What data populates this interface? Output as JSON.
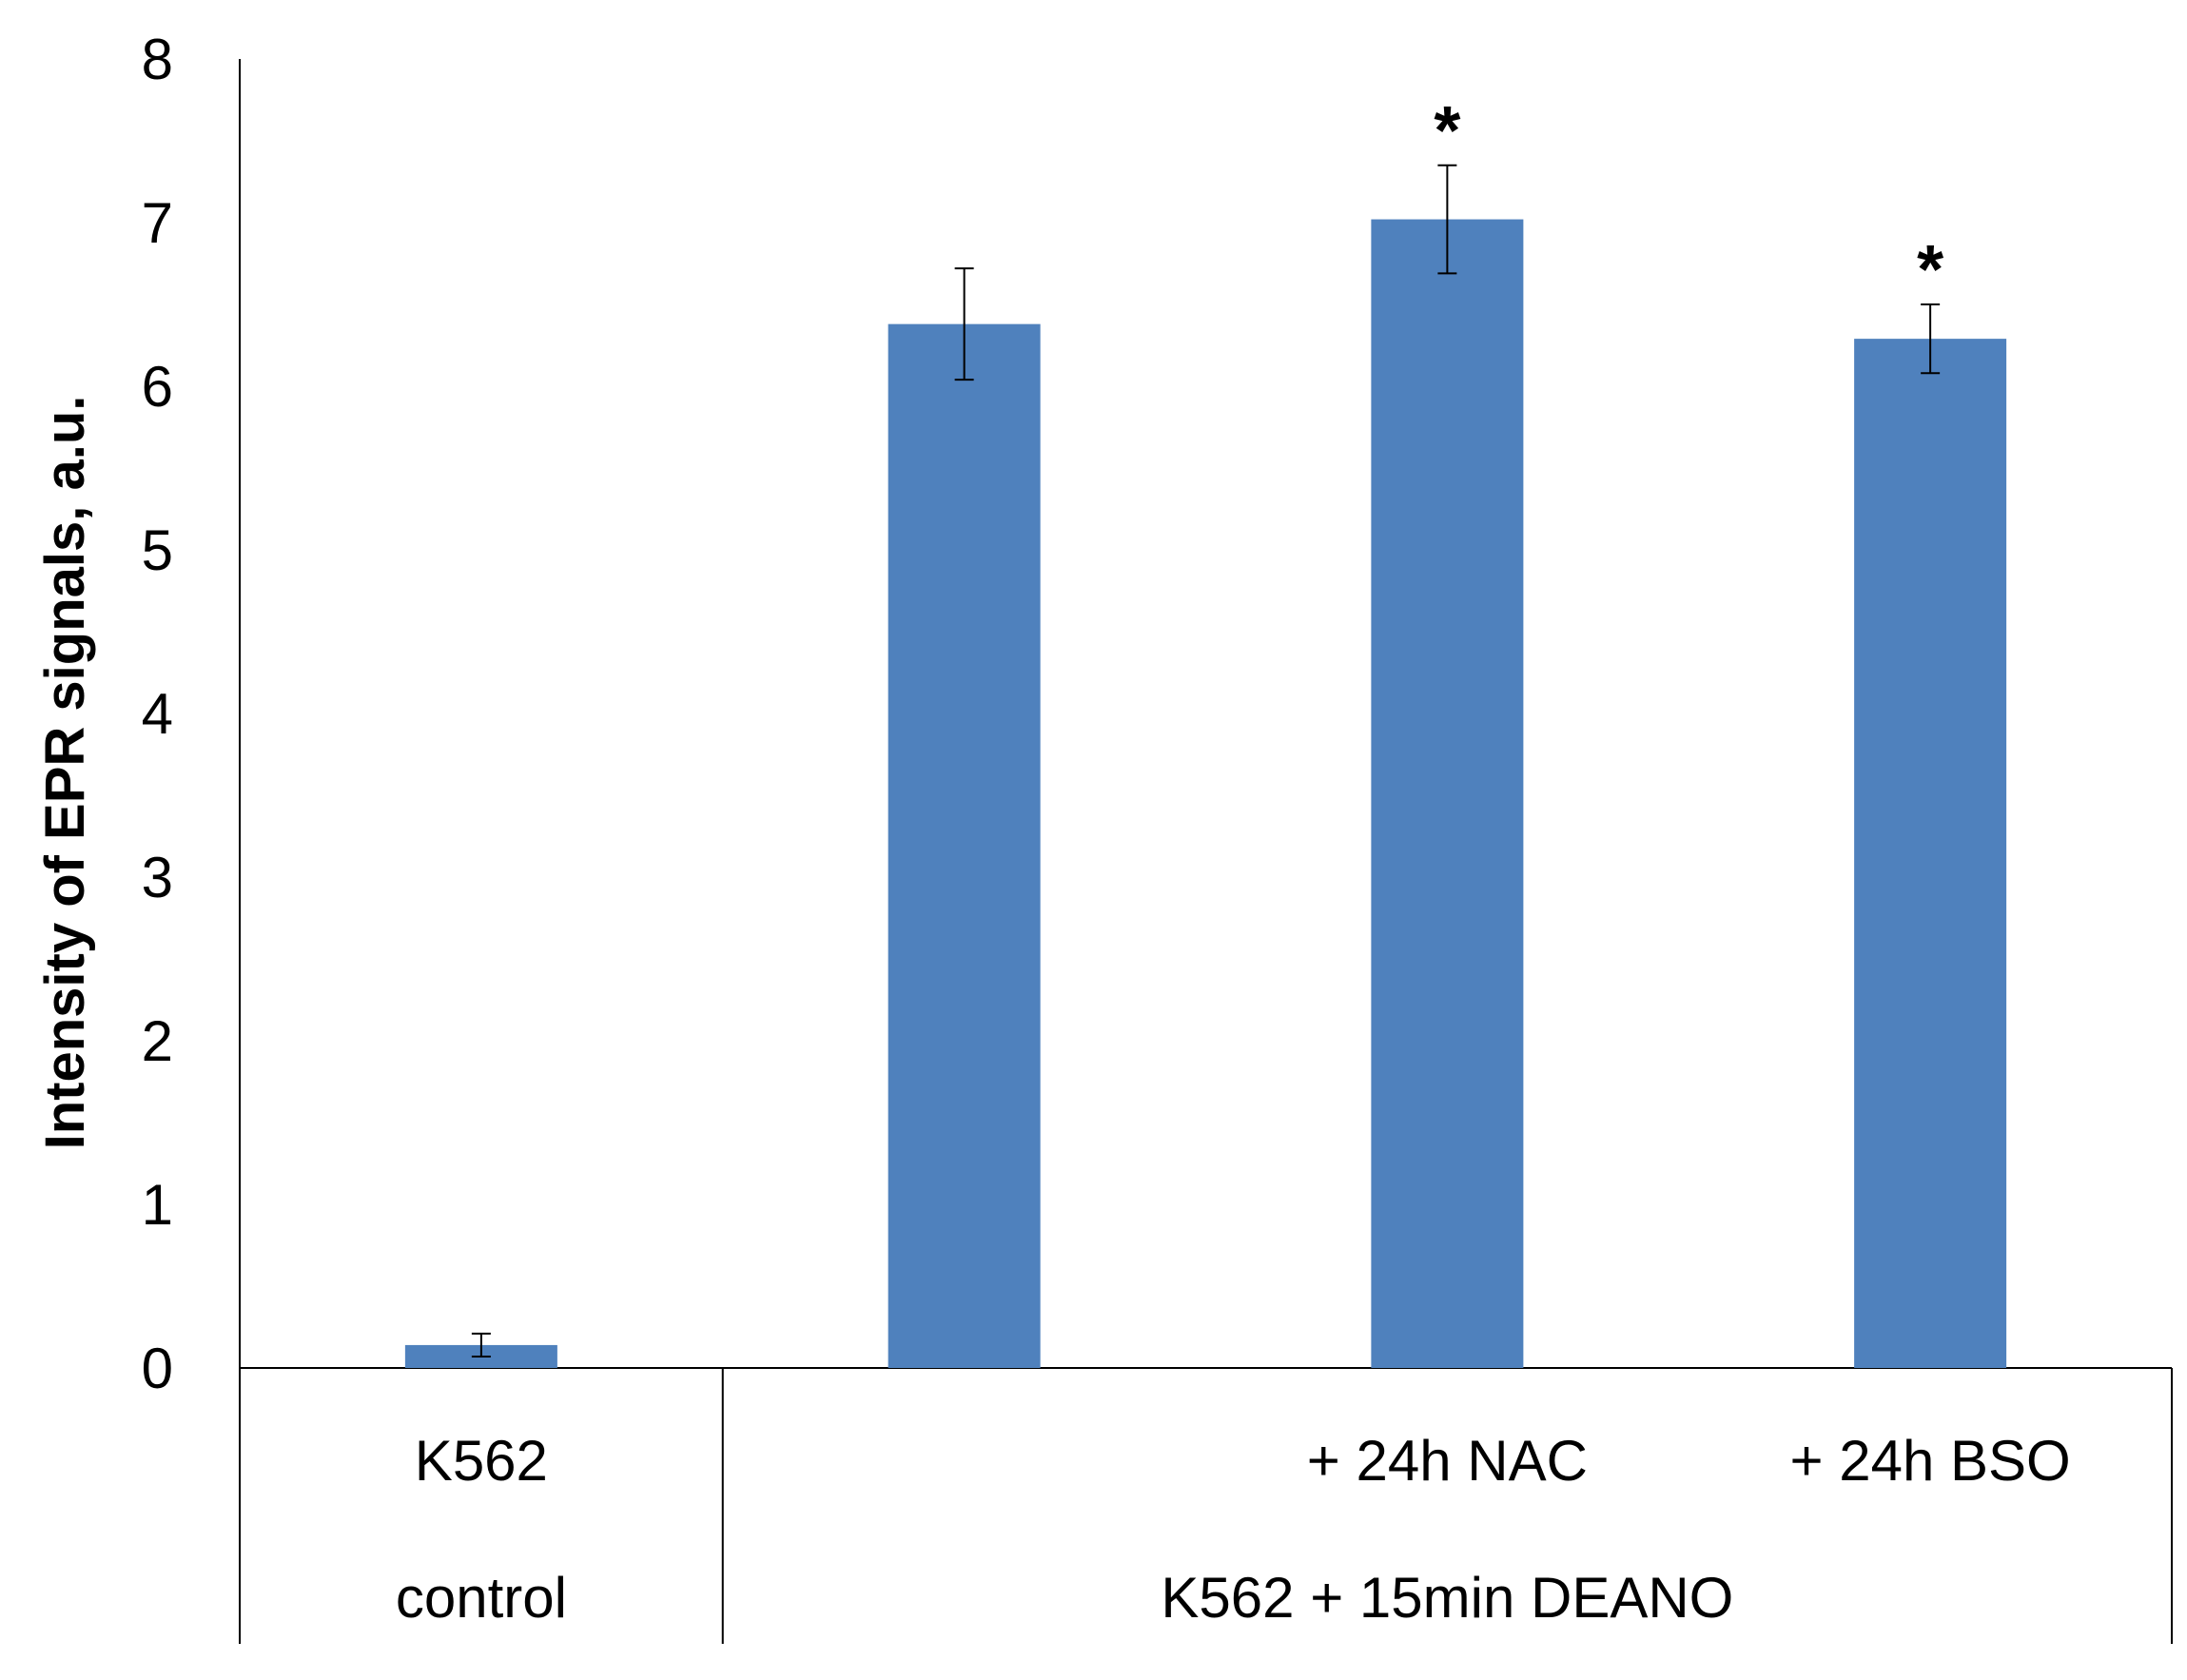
{
  "chart_data": {
    "type": "bar",
    "title": "",
    "xlabel": "",
    "ylabel": "Intensity of EPR signals, a.u.",
    "ylim": [
      0,
      8
    ],
    "yticks": [
      "0",
      "1",
      "2",
      "3",
      "4",
      "5",
      "6",
      "7",
      "8"
    ],
    "categories": [
      "K562",
      "",
      "+ 24h NAC",
      "+ 24h BSO"
    ],
    "groups": [
      {
        "label": "control",
        "categories": [
          0
        ]
      },
      {
        "label": "K562 + 15min DEANO",
        "categories": [
          1,
          2,
          3
        ]
      }
    ],
    "series": [
      {
        "values": [
          0.14,
          6.38,
          7.02,
          6.29
        ],
        "errors": [
          0.07,
          0.34,
          0.33,
          0.21
        ],
        "color": "#4f81bd"
      }
    ],
    "annotations": [
      "",
      "",
      "*",
      "*"
    ],
    "grid": false,
    "legend": "none"
  }
}
